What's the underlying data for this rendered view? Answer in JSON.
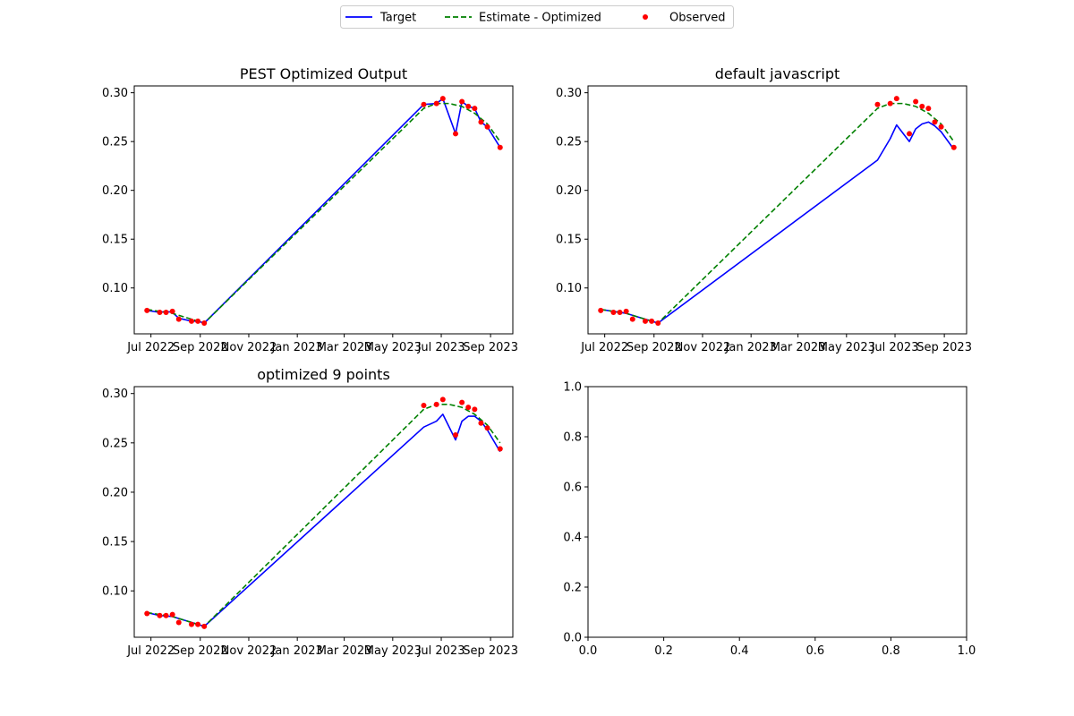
{
  "legend": {
    "location": "top-center",
    "entries": [
      {
        "label": "Target",
        "color": "#0000ff",
        "style": "solid-line"
      },
      {
        "label": "Estimate - Optimized",
        "color": "#008000",
        "style": "dashed-line"
      },
      {
        "label": "Observed",
        "color": "#ff0000",
        "style": "dot"
      }
    ]
  },
  "chart_data": [
    {
      "type": "line",
      "title": "PEST Optimized Output",
      "xlabel": "",
      "ylabel": "",
      "x_axis": {
        "type": "date",
        "range": [
          "2022-06-10",
          "2023-09-29"
        ],
        "ticks": [
          "2022-07-01",
          "2022-09-01",
          "2022-11-01",
          "2023-01-01",
          "2023-03-01",
          "2023-05-01",
          "2023-07-01",
          "2023-09-01"
        ],
        "tick_labels": [
          "Jul 2022",
          "Sep 2022",
          "Nov 2022",
          "Jan 2023",
          "Mar 2023",
          "May 2023",
          "Jul 2023",
          "Sep 2023"
        ]
      },
      "ylim": [
        0.053,
        0.307
      ],
      "y_ticks": [
        0.1,
        0.15,
        0.2,
        0.25,
        0.3
      ],
      "y_tick_labels": [
        "0.10",
        "0.15",
        "0.20",
        "0.25",
        "0.30"
      ],
      "grid": false,
      "series": [
        {
          "name": "Target",
          "kind": "line",
          "color": "#0000ff",
          "points": [
            [
              "2022-06-26",
              0.077
            ],
            [
              "2022-07-12",
              0.075
            ],
            [
              "2022-07-20",
              0.076
            ],
            [
              "2022-07-28",
              0.075
            ],
            [
              "2022-08-05",
              0.069
            ],
            [
              "2022-08-21",
              0.066
            ],
            [
              "2022-08-29",
              0.066
            ],
            [
              "2022-09-06",
              0.064
            ],
            [
              "2023-06-09",
              0.288
            ],
            [
              "2023-06-25",
              0.289
            ],
            [
              "2023-07-03",
              0.294
            ],
            [
              "2023-07-19",
              0.258
            ],
            [
              "2023-07-27",
              0.291
            ],
            [
              "2023-08-04",
              0.286
            ],
            [
              "2023-08-12",
              0.284
            ],
            [
              "2023-08-20",
              0.27
            ],
            [
              "2023-08-28",
              0.265
            ],
            [
              "2023-09-13",
              0.244
            ]
          ]
        },
        {
          "name": "Estimate - Optimized",
          "kind": "dashed-line",
          "color": "#008000",
          "points": [
            [
              "2022-06-26",
              0.078
            ],
            [
              "2022-07-12",
              0.076
            ],
            [
              "2022-07-28",
              0.074
            ],
            [
              "2022-08-13",
              0.07
            ],
            [
              "2022-08-29",
              0.066
            ],
            [
              "2022-09-06",
              0.064
            ],
            [
              "2023-06-09",
              0.284
            ],
            [
              "2023-06-25",
              0.289
            ],
            [
              "2023-07-11",
              0.289
            ],
            [
              "2023-07-27",
              0.286
            ],
            [
              "2023-08-12",
              0.279
            ],
            [
              "2023-08-28",
              0.268
            ],
            [
              "2023-09-13",
              0.25
            ]
          ]
        },
        {
          "name": "Observed",
          "kind": "scatter",
          "color": "#ff0000",
          "points": [
            [
              "2022-06-26",
              0.077
            ],
            [
              "2022-07-12",
              0.075
            ],
            [
              "2022-07-20",
              0.075
            ],
            [
              "2022-07-28",
              0.076
            ],
            [
              "2022-08-05",
              0.068
            ],
            [
              "2022-08-21",
              0.066
            ],
            [
              "2022-08-29",
              0.066
            ],
            [
              "2022-09-06",
              0.064
            ],
            [
              "2023-06-09",
              0.288
            ],
            [
              "2023-06-25",
              0.289
            ],
            [
              "2023-07-03",
              0.294
            ],
            [
              "2023-07-19",
              0.258
            ],
            [
              "2023-07-27",
              0.291
            ],
            [
              "2023-08-04",
              0.286
            ],
            [
              "2023-08-12",
              0.284
            ],
            [
              "2023-08-20",
              0.27
            ],
            [
              "2023-08-28",
              0.265
            ],
            [
              "2023-09-13",
              0.244
            ]
          ]
        }
      ]
    },
    {
      "type": "line",
      "title": "default javascript",
      "xlabel": "",
      "ylabel": "",
      "x_axis": {
        "type": "date",
        "range": [
          "2022-06-10",
          "2023-09-29"
        ],
        "ticks": [
          "2022-07-01",
          "2022-09-01",
          "2022-11-01",
          "2023-01-01",
          "2023-03-01",
          "2023-05-01",
          "2023-07-01",
          "2023-09-01"
        ],
        "tick_labels": [
          "Jul 2022",
          "Sep 2022",
          "Nov 2022",
          "Jan 2023",
          "Mar 2023",
          "May 2023",
          "Jul 2023",
          "Sep 2023"
        ]
      },
      "ylim": [
        0.053,
        0.307
      ],
      "y_ticks": [
        0.1,
        0.15,
        0.2,
        0.25,
        0.3
      ],
      "y_tick_labels": [
        "0.10",
        "0.15",
        "0.20",
        "0.25",
        "0.30"
      ],
      "grid": false,
      "series": [
        {
          "name": "Target",
          "kind": "line",
          "color": "#0000ff",
          "points": [
            [
              "2022-06-26",
              0.078
            ],
            [
              "2022-07-12",
              0.076
            ],
            [
              "2022-07-28",
              0.074
            ],
            [
              "2022-08-13",
              0.07
            ],
            [
              "2022-08-29",
              0.066
            ],
            [
              "2022-09-06",
              0.064
            ],
            [
              "2023-06-09",
              0.231
            ],
            [
              "2023-06-25",
              0.253
            ],
            [
              "2023-07-03",
              0.267
            ],
            [
              "2023-07-19",
              0.25
            ],
            [
              "2023-07-27",
              0.263
            ],
            [
              "2023-08-04",
              0.268
            ],
            [
              "2023-08-12",
              0.27
            ],
            [
              "2023-08-20",
              0.266
            ],
            [
              "2023-08-28",
              0.26
            ],
            [
              "2023-09-13",
              0.242
            ]
          ]
        },
        {
          "name": "Estimate - Optimized",
          "kind": "dashed-line",
          "color": "#008000",
          "points": [
            [
              "2022-06-26",
              0.078
            ],
            [
              "2022-07-12",
              0.076
            ],
            [
              "2022-07-28",
              0.074
            ],
            [
              "2022-08-13",
              0.07
            ],
            [
              "2022-08-29",
              0.066
            ],
            [
              "2022-09-06",
              0.064
            ],
            [
              "2023-06-09",
              0.284
            ],
            [
              "2023-06-25",
              0.289
            ],
            [
              "2023-07-11",
              0.289
            ],
            [
              "2023-07-27",
              0.286
            ],
            [
              "2023-08-12",
              0.279
            ],
            [
              "2023-08-28",
              0.268
            ],
            [
              "2023-09-13",
              0.25
            ]
          ]
        },
        {
          "name": "Observed",
          "kind": "scatter",
          "color": "#ff0000",
          "points": [
            [
              "2022-06-26",
              0.077
            ],
            [
              "2022-07-12",
              0.075
            ],
            [
              "2022-07-20",
              0.075
            ],
            [
              "2022-07-28",
              0.076
            ],
            [
              "2022-08-05",
              0.068
            ],
            [
              "2022-08-21",
              0.066
            ],
            [
              "2022-08-29",
              0.066
            ],
            [
              "2022-09-06",
              0.064
            ],
            [
              "2023-06-09",
              0.288
            ],
            [
              "2023-06-25",
              0.289
            ],
            [
              "2023-07-03",
              0.294
            ],
            [
              "2023-07-19",
              0.258
            ],
            [
              "2023-07-27",
              0.291
            ],
            [
              "2023-08-04",
              0.286
            ],
            [
              "2023-08-12",
              0.284
            ],
            [
              "2023-08-20",
              0.27
            ],
            [
              "2023-08-28",
              0.265
            ],
            [
              "2023-09-13",
              0.244
            ]
          ]
        }
      ]
    },
    {
      "type": "line",
      "title": "optimized 9 points",
      "xlabel": "",
      "ylabel": "",
      "x_axis": {
        "type": "date",
        "range": [
          "2022-06-10",
          "2023-09-29"
        ],
        "ticks": [
          "2022-07-01",
          "2022-09-01",
          "2022-11-01",
          "2023-01-01",
          "2023-03-01",
          "2023-05-01",
          "2023-07-01",
          "2023-09-01"
        ],
        "tick_labels": [
          "Jul 2022",
          "Sep 2022",
          "Nov 2022",
          "Jan 2023",
          "Mar 2023",
          "May 2023",
          "Jul 2023",
          "Sep 2023"
        ]
      },
      "ylim": [
        0.053,
        0.307
      ],
      "y_ticks": [
        0.1,
        0.15,
        0.2,
        0.25,
        0.3
      ],
      "y_tick_labels": [
        "0.10",
        "0.15",
        "0.20",
        "0.25",
        "0.30"
      ],
      "grid": false,
      "series": [
        {
          "name": "Target",
          "kind": "line",
          "color": "#0000ff",
          "points": [
            [
              "2022-06-26",
              0.078
            ],
            [
              "2022-07-12",
              0.075
            ],
            [
              "2022-07-28",
              0.074
            ],
            [
              "2022-08-13",
              0.07
            ],
            [
              "2022-08-29",
              0.066
            ],
            [
              "2022-09-06",
              0.064
            ],
            [
              "2023-06-09",
              0.266
            ],
            [
              "2023-06-25",
              0.272
            ],
            [
              "2023-07-03",
              0.279
            ],
            [
              "2023-07-19",
              0.253
            ],
            [
              "2023-07-27",
              0.272
            ],
            [
              "2023-08-04",
              0.277
            ],
            [
              "2023-08-12",
              0.277
            ],
            [
              "2023-08-20",
              0.272
            ],
            [
              "2023-08-28",
              0.263
            ],
            [
              "2023-09-13",
              0.241
            ]
          ]
        },
        {
          "name": "Estimate - Optimized",
          "kind": "dashed-line",
          "color": "#008000",
          "points": [
            [
              "2022-06-26",
              0.078
            ],
            [
              "2022-07-12",
              0.076
            ],
            [
              "2022-07-28",
              0.074
            ],
            [
              "2022-08-13",
              0.07
            ],
            [
              "2022-08-29",
              0.066
            ],
            [
              "2022-09-06",
              0.064
            ],
            [
              "2023-06-09",
              0.284
            ],
            [
              "2023-06-25",
              0.289
            ],
            [
              "2023-07-11",
              0.289
            ],
            [
              "2023-07-27",
              0.286
            ],
            [
              "2023-08-12",
              0.279
            ],
            [
              "2023-08-28",
              0.268
            ],
            [
              "2023-09-13",
              0.25
            ]
          ]
        },
        {
          "name": "Observed",
          "kind": "scatter",
          "color": "#ff0000",
          "points": [
            [
              "2022-06-26",
              0.077
            ],
            [
              "2022-07-12",
              0.075
            ],
            [
              "2022-07-20",
              0.075
            ],
            [
              "2022-07-28",
              0.076
            ],
            [
              "2022-08-05",
              0.068
            ],
            [
              "2022-08-21",
              0.066
            ],
            [
              "2022-08-29",
              0.066
            ],
            [
              "2022-09-06",
              0.064
            ],
            [
              "2023-06-09",
              0.288
            ],
            [
              "2023-06-25",
              0.289
            ],
            [
              "2023-07-03",
              0.294
            ],
            [
              "2023-07-19",
              0.258
            ],
            [
              "2023-07-27",
              0.291
            ],
            [
              "2023-08-04",
              0.286
            ],
            [
              "2023-08-12",
              0.284
            ],
            [
              "2023-08-20",
              0.27
            ],
            [
              "2023-08-28",
              0.265
            ],
            [
              "2023-09-13",
              0.244
            ]
          ]
        }
      ]
    },
    {
      "type": "line",
      "title": "",
      "xlabel": "",
      "ylabel": "",
      "x_axis": {
        "type": "linear",
        "range": [
          0,
          1
        ],
        "ticks": [
          0.0,
          0.2,
          0.4,
          0.6,
          0.8,
          1.0
        ],
        "tick_labels": [
          "0.0",
          "0.2",
          "0.4",
          "0.6",
          "0.8",
          "1.0"
        ]
      },
      "ylim": [
        0,
        1
      ],
      "y_ticks": [
        0.0,
        0.2,
        0.4,
        0.6,
        0.8,
        1.0
      ],
      "y_tick_labels": [
        "0.0",
        "0.2",
        "0.4",
        "0.6",
        "0.8",
        "1.0"
      ],
      "grid": false,
      "series": []
    }
  ]
}
